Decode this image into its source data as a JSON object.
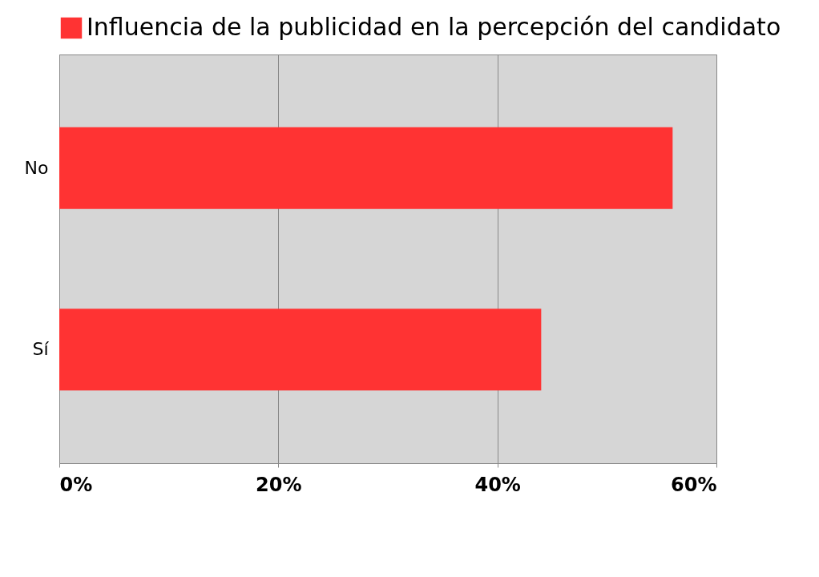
{
  "chart_data": {
    "type": "bar",
    "orientation": "horizontal",
    "categories": [
      "No",
      "Sí"
    ],
    "series": [
      {
        "name": "Influencia de la publicidad en la percepción del candidato",
        "color": "#ff3333",
        "values": [
          56,
          44
        ]
      }
    ],
    "xlim": [
      0,
      60
    ],
    "xticks": [
      {
        "value": 0,
        "label": "0%"
      },
      {
        "value": 20,
        "label": "20%"
      },
      {
        "value": 40,
        "label": "40%"
      },
      {
        "value": 60,
        "label": "60%"
      }
    ],
    "grid": "x",
    "legend": "top"
  }
}
